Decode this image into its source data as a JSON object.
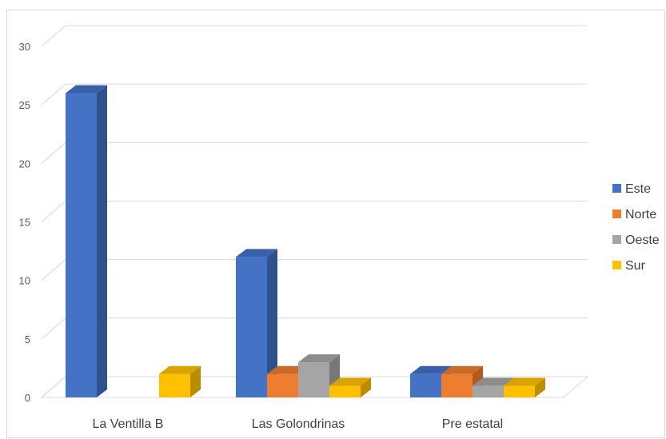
{
  "chart_data": {
    "type": "bar",
    "style": "3d-clustered-column",
    "categories": [
      "La Ventilla B",
      "Las Golondrinas",
      "Pre estatal"
    ],
    "series": [
      {
        "name": "Este",
        "color": "#4472C4",
        "side": "#2F528F",
        "top": "#3A61A8",
        "values": [
          26,
          12,
          2
        ]
      },
      {
        "name": "Norte",
        "color": "#ED7D31",
        "side": "#AE5A21",
        "top": "#C96A29",
        "values": [
          0,
          2,
          2
        ]
      },
      {
        "name": "Oeste",
        "color": "#A5A5A5",
        "side": "#787878",
        "top": "#8C8C8C",
        "values": [
          0,
          3,
          1
        ]
      },
      {
        "name": "Sur",
        "color": "#FFC000",
        "side": "#BC8C00",
        "top": "#D9A300",
        "values": [
          2,
          1,
          1
        ]
      }
    ],
    "y_ticks": [
      "0",
      "5",
      "10",
      "15",
      "20",
      "25",
      "30"
    ],
    "ylim": [
      0,
      30
    ],
    "grid": true,
    "legend": "right"
  }
}
